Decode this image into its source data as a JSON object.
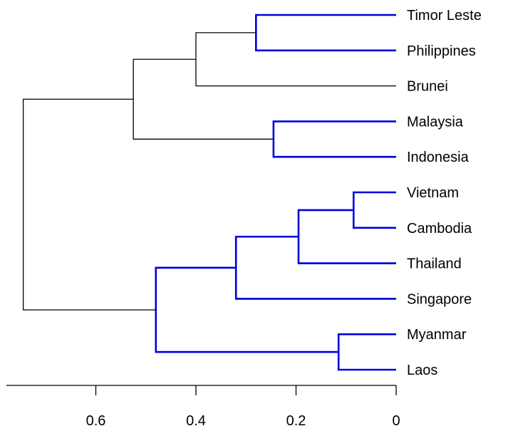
{
  "chart_data": {
    "type": "dendrogram",
    "orientation": "horizontal",
    "x_axis": {
      "reversed": true,
      "range": [
        0,
        0.78
      ],
      "ticks": [
        0.6,
        0.4,
        0.2,
        0
      ]
    },
    "tick_labels": [
      "0.6",
      "0.4",
      "0.2",
      "0"
    ],
    "highlight_color": "#0000dd",
    "default_color": "#000000",
    "leaves": [
      {
        "name": "Timor Leste",
        "highlighted": true
      },
      {
        "name": "Philippines",
        "highlighted": true
      },
      {
        "name": "Brunei",
        "highlighted": false
      },
      {
        "name": "Malaysia",
        "highlighted": true
      },
      {
        "name": "Indonesia",
        "highlighted": true
      },
      {
        "name": "Vietnam",
        "highlighted": true
      },
      {
        "name": "Cambodia",
        "highlighted": true
      },
      {
        "name": "Thailand",
        "highlighted": true
      },
      {
        "name": "Singapore",
        "highlighted": true
      },
      {
        "name": "Myanmar",
        "highlighted": true
      },
      {
        "name": "Laos",
        "highlighted": true
      }
    ],
    "merges": [
      {
        "id": "m1",
        "left": "Timor Leste",
        "right": "Philippines",
        "height": 0.28,
        "highlighted": true
      },
      {
        "id": "m2",
        "left": "m1",
        "right": "Brunei",
        "height": 0.4,
        "highlighted": false
      },
      {
        "id": "m3",
        "left": "Malaysia",
        "right": "Indonesia",
        "height": 0.245,
        "highlighted": true
      },
      {
        "id": "m4",
        "left": "m2",
        "right": "m3",
        "height": 0.525,
        "highlighted": false
      },
      {
        "id": "m5",
        "left": "Vietnam",
        "right": "Cambodia",
        "height": 0.085,
        "highlighted": true
      },
      {
        "id": "m6",
        "left": "m5",
        "right": "Thailand",
        "height": 0.195,
        "highlighted": true
      },
      {
        "id": "m7",
        "left": "m6",
        "right": "Singapore",
        "height": 0.32,
        "highlighted": true
      },
      {
        "id": "m8",
        "left": "Myanmar",
        "right": "Laos",
        "height": 0.115,
        "highlighted": true
      },
      {
        "id": "m9",
        "left": "m7",
        "right": "m8",
        "height": 0.48,
        "highlighted": true
      },
      {
        "id": "m10",
        "left": "m4",
        "right": "m9",
        "height": 0.745,
        "highlighted": false
      }
    ]
  }
}
